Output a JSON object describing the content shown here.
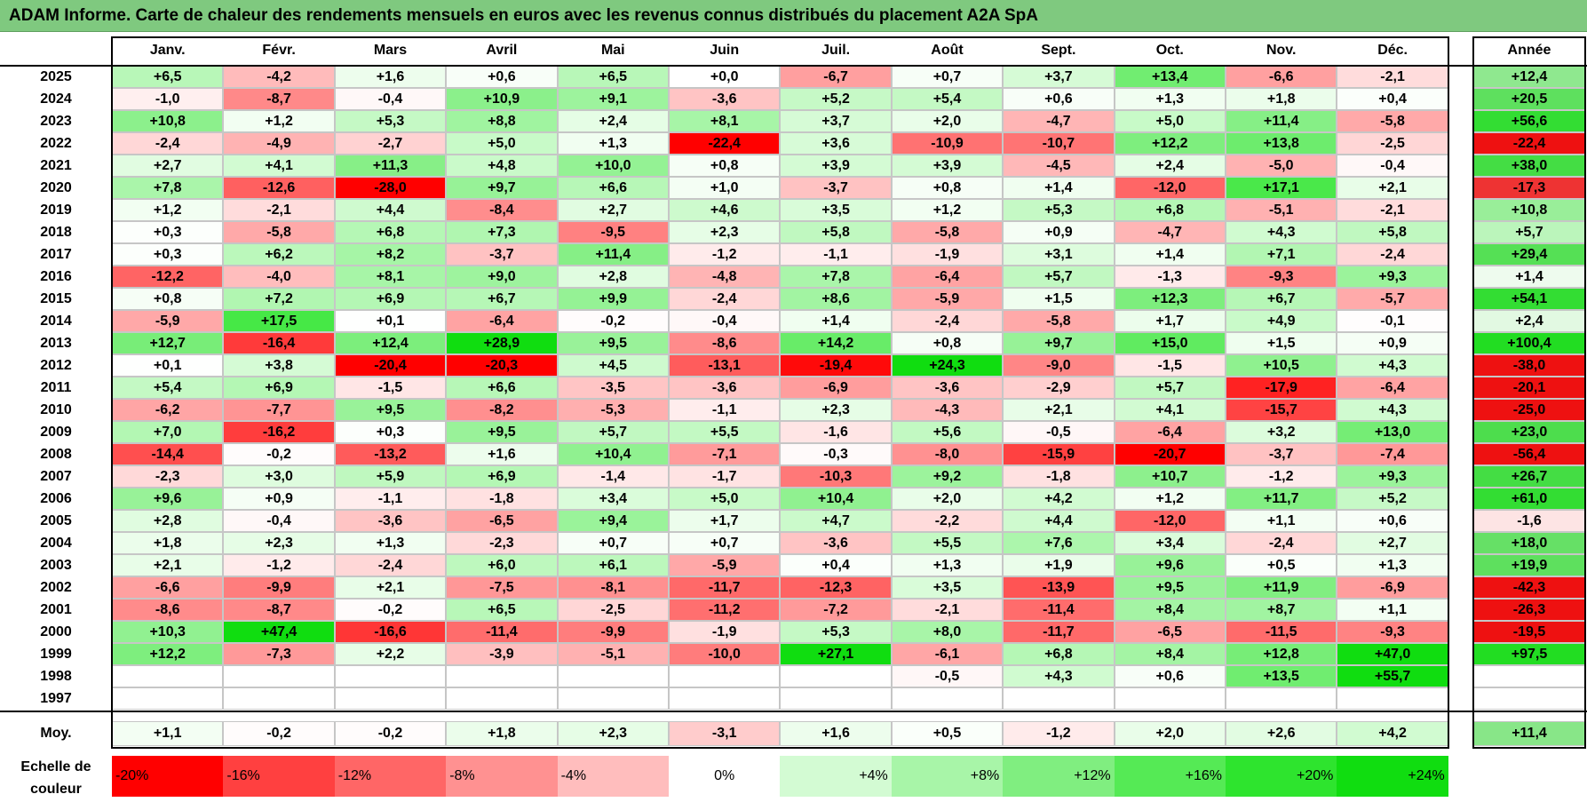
{
  "title": "ADAM Informe. Carte de chaleur des rendements mensuels en euros avec les revenus connus distribués du placement A2A SpA",
  "chart_data": {
    "type": "heatmap",
    "columns": [
      "Janv.",
      "Févr.",
      "Mars",
      "Avril",
      "Mai",
      "Juin",
      "Juil.",
      "Août",
      "Sept.",
      "Oct.",
      "Nov.",
      "Déc."
    ],
    "year_header": "Année",
    "rows": [
      {
        "year": "2025",
        "values": [
          "+6,5",
          "-4,2",
          "+1,6",
          "+0,6",
          "+6,5",
          "+0,0",
          "-6,7",
          "+0,7",
          "+3,7",
          "+13,4",
          "-6,6",
          "-2,1"
        ],
        "annual": "+12,4"
      },
      {
        "year": "2024",
        "values": [
          "-1,0",
          "-8,7",
          "-0,4",
          "+10,9",
          "+9,1",
          "-3,6",
          "+5,2",
          "+5,4",
          "+0,6",
          "+1,3",
          "+1,8",
          "+0,4"
        ],
        "annual": "+20,5"
      },
      {
        "year": "2023",
        "values": [
          "+10,8",
          "+1,2",
          "+5,3",
          "+8,8",
          "+2,4",
          "+8,1",
          "+3,7",
          "+2,0",
          "-4,7",
          "+5,0",
          "+11,4",
          "-5,8"
        ],
        "annual": "+56,6"
      },
      {
        "year": "2022",
        "values": [
          "-2,4",
          "-4,9",
          "-2,7",
          "+5,0",
          "+1,3",
          "-22,4",
          "+3,6",
          "-10,9",
          "-10,7",
          "+12,2",
          "+13,8",
          "-2,5"
        ],
        "annual": "-22,4"
      },
      {
        "year": "2021",
        "values": [
          "+2,7",
          "+4,1",
          "+11,3",
          "+4,8",
          "+10,0",
          "+0,8",
          "+3,9",
          "+3,9",
          "-4,5",
          "+2,4",
          "-5,0",
          "-0,4"
        ],
        "annual": "+38,0"
      },
      {
        "year": "2020",
        "values": [
          "+7,8",
          "-12,6",
          "-28,0",
          "+9,7",
          "+6,6",
          "+1,0",
          "-3,7",
          "+0,8",
          "+1,4",
          "-12,0",
          "+17,1",
          "+2,1"
        ],
        "annual": "-17,3"
      },
      {
        "year": "2019",
        "values": [
          "+1,2",
          "-2,1",
          "+4,4",
          "-8,4",
          "+2,7",
          "+4,6",
          "+3,5",
          "+1,2",
          "+5,3",
          "+6,8",
          "-5,1",
          "-2,1"
        ],
        "annual": "+10,8"
      },
      {
        "year": "2018",
        "values": [
          "+0,3",
          "-5,8",
          "+6,8",
          "+7,3",
          "-9,5",
          "+2,3",
          "+5,8",
          "-5,8",
          "+0,9",
          "-4,7",
          "+4,3",
          "+5,8"
        ],
        "annual": "+5,7"
      },
      {
        "year": "2017",
        "values": [
          "+0,3",
          "+6,2",
          "+8,2",
          "-3,7",
          "+11,4",
          "-1,2",
          "-1,1",
          "-1,9",
          "+3,1",
          "+1,4",
          "+7,1",
          "-2,4"
        ],
        "annual": "+29,4"
      },
      {
        "year": "2016",
        "values": [
          "-12,2",
          "-4,0",
          "+8,1",
          "+9,0",
          "+2,8",
          "-4,8",
          "+7,8",
          "-6,4",
          "+5,7",
          "-1,3",
          "-9,3",
          "+9,3"
        ],
        "annual": "+1,4"
      },
      {
        "year": "2015",
        "values": [
          "+0,8",
          "+7,2",
          "+6,9",
          "+6,7",
          "+9,9",
          "-2,4",
          "+8,6",
          "-5,9",
          "+1,5",
          "+12,3",
          "+6,7",
          "-5,7"
        ],
        "annual": "+54,1"
      },
      {
        "year": "2014",
        "values": [
          "-5,9",
          "+17,5",
          "+0,1",
          "-6,4",
          "-0,2",
          "-0,4",
          "+1,4",
          "-2,4",
          "-5,8",
          "+1,7",
          "+4,9",
          "-0,1"
        ],
        "annual": "+2,4"
      },
      {
        "year": "2013",
        "values": [
          "+12,7",
          "-16,4",
          "+12,4",
          "+28,9",
          "+9,5",
          "-8,6",
          "+14,2",
          "+0,8",
          "+9,7",
          "+15,0",
          "+1,5",
          "+0,9"
        ],
        "annual": "+100,4"
      },
      {
        "year": "2012",
        "values": [
          "+0,1",
          "+3,8",
          "-20,4",
          "-20,3",
          "+4,5",
          "-13,1",
          "-19,4",
          "+24,3",
          "-9,0",
          "-1,5",
          "+10,5",
          "+4,3"
        ],
        "annual": "-38,0"
      },
      {
        "year": "2011",
        "values": [
          "+5,4",
          "+6,9",
          "-1,5",
          "+6,6",
          "-3,5",
          "-3,6",
          "-6,9",
          "-3,6",
          "-2,9",
          "+5,7",
          "-17,9",
          "-6,4"
        ],
        "annual": "-20,1"
      },
      {
        "year": "2010",
        "values": [
          "-6,2",
          "-7,7",
          "+9,5",
          "-8,2",
          "-5,3",
          "-1,1",
          "+2,3",
          "-4,3",
          "+2,1",
          "+4,1",
          "-15,7",
          "+4,3"
        ],
        "annual": "-25,0"
      },
      {
        "year": "2009",
        "values": [
          "+7,0",
          "-16,2",
          "+0,3",
          "+9,5",
          "+5,7",
          "+5,5",
          "-1,6",
          "+5,6",
          "-0,5",
          "-6,4",
          "+3,2",
          "+13,0"
        ],
        "annual": "+23,0"
      },
      {
        "year": "2008",
        "values": [
          "-14,4",
          "-0,2",
          "-13,2",
          "+1,6",
          "+10,4",
          "-7,1",
          "-0,3",
          "-8,0",
          "-15,9",
          "-20,7",
          "-3,7",
          "-7,4"
        ],
        "annual": "-56,4"
      },
      {
        "year": "2007",
        "values": [
          "-2,3",
          "+3,0",
          "+5,9",
          "+6,9",
          "-1,4",
          "-1,7",
          "-10,3",
          "+9,2",
          "-1,8",
          "+10,7",
          "-1,2",
          "+9,3"
        ],
        "annual": "+26,7"
      },
      {
        "year": "2006",
        "values": [
          "+9,6",
          "+0,9",
          "-1,1",
          "-1,8",
          "+3,4",
          "+5,0",
          "+10,4",
          "+2,0",
          "+4,2",
          "+1,2",
          "+11,7",
          "+5,2"
        ],
        "annual": "+61,0"
      },
      {
        "year": "2005",
        "values": [
          "+2,8",
          "-0,4",
          "-3,6",
          "-6,5",
          "+9,4",
          "+1,7",
          "+4,7",
          "-2,2",
          "+4,4",
          "-12,0",
          "+1,1",
          "+0,6"
        ],
        "annual": "-1,6"
      },
      {
        "year": "2004",
        "values": [
          "+1,8",
          "+2,3",
          "+1,3",
          "-2,3",
          "+0,7",
          "+0,7",
          "-3,6",
          "+5,5",
          "+7,6",
          "+3,4",
          "-2,4",
          "+2,7"
        ],
        "annual": "+18,0"
      },
      {
        "year": "2003",
        "values": [
          "+2,1",
          "-1,2",
          "-2,4",
          "+6,0",
          "+6,1",
          "-5,9",
          "+0,4",
          "+1,3",
          "+1,9",
          "+9,6",
          "+0,5",
          "+1,3"
        ],
        "annual": "+19,9"
      },
      {
        "year": "2002",
        "values": [
          "-6,6",
          "-9,9",
          "+2,1",
          "-7,5",
          "-8,1",
          "-11,7",
          "-12,3",
          "+3,5",
          "-13,9",
          "+9,5",
          "+11,9",
          "-6,9"
        ],
        "annual": "-42,3"
      },
      {
        "year": "2001",
        "values": [
          "-8,6",
          "-8,7",
          "-0,2",
          "+6,5",
          "-2,5",
          "-11,2",
          "-7,2",
          "-2,1",
          "-11,4",
          "+8,4",
          "+8,7",
          "+1,1"
        ],
        "annual": "-26,3"
      },
      {
        "year": "2000",
        "values": [
          "+10,3",
          "+47,4",
          "-16,6",
          "-11,4",
          "-9,9",
          "-1,9",
          "+5,3",
          "+8,0",
          "-11,7",
          "-6,5",
          "-11,5",
          "-9,3"
        ],
        "annual": "-19,5"
      },
      {
        "year": "1999",
        "values": [
          "+12,2",
          "-7,3",
          "+2,2",
          "-3,9",
          "-5,1",
          "-10,0",
          "+27,1",
          "-6,1",
          "+6,8",
          "+8,4",
          "+12,8",
          "+47,0"
        ],
        "annual": "+97,5"
      },
      {
        "year": "1998",
        "values": [
          "",
          "",
          "",
          "",
          "",
          "",
          "",
          "-0,5",
          "+4,3",
          "+0,6",
          "+13,5",
          "+55,7"
        ],
        "annual": ""
      },
      {
        "year": "1997",
        "values": [
          "",
          "",
          "",
          "",
          "",
          "",
          "",
          "",
          "",
          "",
          "",
          ""
        ],
        "annual": ""
      }
    ],
    "average": {
      "label": "Moy.",
      "values": [
        "+1,1",
        "-0,2",
        "-0,2",
        "+1,8",
        "+2,3",
        "-3,1",
        "+1,6",
        "+0,5",
        "-1,2",
        "+2,0",
        "+2,6",
        "+4,2"
      ],
      "annual": "+11,4"
    },
    "annual_colors": {
      "2025": "#8fe88f",
      "2024": "#5ee05e",
      "2023": "#33dd33",
      "2022": "#ee1111",
      "2021": "#44dd44",
      "2020": "#ee3333",
      "2019": "#99ee99",
      "2018": "#bbf5bb",
      "2017": "#55e055",
      "2016": "#eefbee",
      "2015": "#33dd33",
      "2014": "#e2f9e2",
      "2013": "#22dd22",
      "2012": "#ee1111",
      "2011": "#ee1111",
      "2010": "#ee1111",
      "2009": "#4ddd4d",
      "2008": "#ee1111",
      "2007": "#44dd44",
      "2006": "#33dd33",
      "2005": "#fde4e4",
      "2004": "#66e066",
      "2003": "#5ee05e",
      "2002": "#ee1111",
      "2001": "#ee1111",
      "2000": "#ee1111",
      "1999": "#22dd22",
      "1998": "#ffffff",
      "1997": "#ffffff",
      "average": "#88e688"
    },
    "scale": {
      "label": "Echelle de couleur",
      "values": [
        -20,
        -16,
        -12,
        -8,
        -4,
        0,
        4,
        8,
        12,
        16,
        20,
        24
      ],
      "labels": [
        "-20%",
        "-16%",
        "-12%",
        "-8%",
        "-4%",
        "0%",
        "+4%",
        "+8%",
        "+12%",
        "+16%",
        "+20%",
        "+24%"
      ],
      "colors": [
        "#ff0000",
        "#ff4040",
        "#ff6666",
        "#ff9191",
        "#ffbdbd",
        "#ffffff",
        "#d3fbd3",
        "#a8f5a8",
        "#80ee80",
        "#55ea55",
        "#2ee42e",
        "#10dd10"
      ]
    }
  }
}
